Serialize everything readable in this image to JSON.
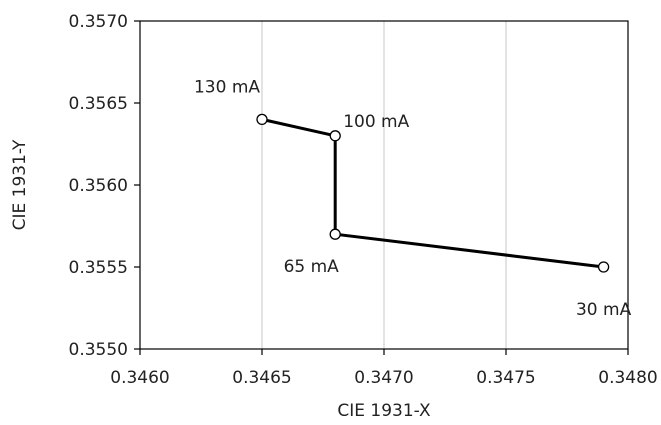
{
  "chart_data": {
    "type": "line",
    "title": "",
    "xlabel": "CIE 1931-X",
    "ylabel": "CIE 1931-Y",
    "xlim": [
      0.346,
      0.348
    ],
    "ylim": [
      0.355,
      0.357
    ],
    "x_ticks": [
      "0.3460",
      "0.3465",
      "0.3470",
      "0.3475",
      "0.3480"
    ],
    "y_ticks": [
      "0.3550",
      "0.3555",
      "0.3560",
      "0.3565",
      "0.3570"
    ],
    "x_tick_values": [
      0.346,
      0.3465,
      0.347,
      0.3475,
      0.348
    ],
    "y_tick_values": [
      0.355,
      0.3555,
      0.356,
      0.3565,
      0.357
    ],
    "grid": "vertical",
    "series": [
      {
        "points": [
          {
            "x": 0.3479,
            "y": 0.3555,
            "label": "30 mA"
          },
          {
            "x": 0.3468,
            "y": 0.3557,
            "label": "65 mA"
          },
          {
            "x": 0.3468,
            "y": 0.3563,
            "label": "100 mA"
          },
          {
            "x": 0.3465,
            "y": 0.3564,
            "label": "130 mA"
          }
        ],
        "marker": "open-circle",
        "line_color": "#000000"
      }
    ],
    "colors": {
      "grid": "#d0d0d0",
      "axis": "#000000",
      "line": "#000000"
    }
  }
}
